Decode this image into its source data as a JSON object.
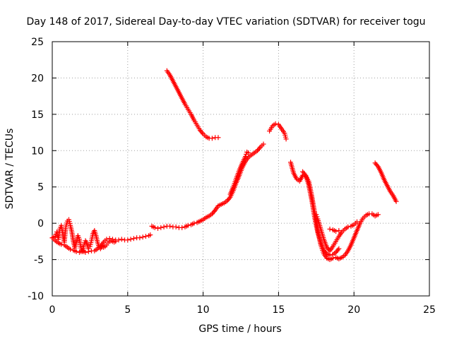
{
  "chart_data": {
    "type": "scatter",
    "title": "Day 148 of 2017, Sidereal Day-to-day VTEC variation (SDTVAR) for receiver togu",
    "xlabel": "GPS time / hours",
    "ylabel": "SDTVAR / TECUs",
    "xlim": [
      0,
      25
    ],
    "ylim": [
      -10,
      25
    ],
    "xticks": [
      "0",
      "5",
      "10",
      "15",
      "20",
      "25"
    ],
    "yticks": [
      "-10",
      "-5",
      "0",
      "5",
      "10",
      "15",
      "20",
      "25"
    ],
    "grid": true,
    "marker": "plus",
    "color": "#ff0000",
    "series": [
      {
        "name": "segment-1",
        "points": [
          [
            0,
            -2
          ],
          [
            0.2,
            -1.8
          ],
          [
            0.3,
            -1.2
          ],
          [
            0.4,
            -2.2
          ],
          [
            0.5,
            -0.8
          ],
          [
            0.6,
            -0.3
          ],
          [
            0.7,
            -1.5
          ],
          [
            0.8,
            -2.6
          ],
          [
            0.9,
            -0.5
          ],
          [
            1.0,
            0.3
          ],
          [
            1.1,
            0.5
          ],
          [
            1.2,
            -0.3
          ],
          [
            1.3,
            -1.2
          ],
          [
            1.4,
            -2.5
          ],
          [
            1.5,
            -3.4
          ],
          [
            1.6,
            -2.6
          ],
          [
            1.7,
            -1.7
          ],
          [
            1.8,
            -2.2
          ],
          [
            1.9,
            -3.4
          ],
          [
            2.0,
            -3.9
          ],
          [
            2.1,
            -3.0
          ],
          [
            2.2,
            -2.4
          ],
          [
            2.3,
            -2.8
          ],
          [
            2.4,
            -3.5
          ],
          [
            2.5,
            -3.2
          ],
          [
            2.6,
            -2.4
          ],
          [
            2.7,
            -1.4
          ],
          [
            2.8,
            -1.0
          ],
          [
            2.9,
            -1.7
          ],
          [
            3.0,
            -2.6
          ],
          [
            3.1,
            -3.3
          ],
          [
            3.2,
            -3.5
          ],
          [
            3.3,
            -3.1
          ]
        ]
      },
      {
        "name": "segment-2",
        "points": [
          [
            0,
            -2.0
          ],
          [
            0.2,
            -2.4
          ],
          [
            0.4,
            -2.7
          ],
          [
            0.6,
            -2.9
          ],
          [
            0.8,
            -3.0
          ],
          [
            1.0,
            -3.3
          ],
          [
            1.2,
            -3.6
          ],
          [
            1.4,
            -3.7
          ],
          [
            1.6,
            -3.9
          ],
          [
            1.8,
            -4.0
          ],
          [
            2.0,
            -3.8
          ],
          [
            2.2,
            -4.0
          ],
          [
            2.4,
            -3.9
          ],
          [
            2.6,
            -3.8
          ],
          [
            2.8,
            -3.8
          ],
          [
            3.0,
            -3.5
          ],
          [
            3.2,
            -3.2
          ],
          [
            3.4,
            -2.6
          ],
          [
            3.6,
            -2.2
          ],
          [
            3.8,
            -2.1
          ],
          [
            4.0,
            -2.2
          ],
          [
            4.2,
            -2.3
          ],
          [
            4.4,
            -2.3
          ],
          [
            4.6,
            -2.2
          ],
          [
            4.8,
            -2.3
          ],
          [
            5.0,
            -2.3
          ],
          [
            5.2,
            -2.2
          ],
          [
            5.4,
            -2.1
          ],
          [
            5.6,
            -2.0
          ],
          [
            5.8,
            -2.0
          ],
          [
            6.0,
            -1.9
          ],
          [
            6.2,
            -1.8
          ],
          [
            6.4,
            -1.7
          ],
          [
            6.5,
            -1.6
          ]
        ]
      },
      {
        "name": "segment-3",
        "points": [
          [
            3.3,
            -3.1
          ],
          [
            3.4,
            -3.3
          ],
          [
            3.5,
            -3.2
          ],
          [
            3.6,
            -3.0
          ],
          [
            3.7,
            -2.7
          ],
          [
            3.8,
            -2.5
          ],
          [
            3.9,
            -2.4
          ],
          [
            4.0,
            -2.5
          ],
          [
            4.1,
            -2.6
          ],
          [
            4.2,
            -2.5
          ]
        ]
      },
      {
        "name": "segment-4",
        "points": [
          [
            6.6,
            -0.4
          ],
          [
            6.8,
            -0.6
          ],
          [
            7.0,
            -0.7
          ],
          [
            7.2,
            -0.6
          ],
          [
            7.4,
            -0.5
          ],
          [
            7.6,
            -0.4
          ],
          [
            7.8,
            -0.4
          ],
          [
            8.0,
            -0.5
          ],
          [
            8.2,
            -0.5
          ],
          [
            8.4,
            -0.6
          ],
          [
            8.6,
            -0.6
          ],
          [
            8.8,
            -0.5
          ],
          [
            9.0,
            -0.3
          ],
          [
            9.2,
            -0.2
          ],
          [
            9.4,
            0.0
          ],
          [
            9.6,
            0.1
          ],
          [
            9.8,
            0.3
          ],
          [
            10.0,
            0.5
          ],
          [
            10.2,
            0.8
          ],
          [
            10.4,
            1.0
          ],
          [
            10.6,
            1.3
          ],
          [
            10.8,
            1.8
          ],
          [
            11.0,
            2.4
          ],
          [
            11.2,
            2.6
          ],
          [
            11.4,
            2.8
          ],
          [
            11.6,
            3.1
          ],
          [
            11.8,
            3.6
          ],
          [
            12.0,
            4.5
          ],
          [
            12.2,
            5.6
          ],
          [
            12.4,
            6.6
          ],
          [
            12.6,
            7.7
          ],
          [
            12.8,
            8.5
          ],
          [
            13.0,
            9.1
          ],
          [
            13.2,
            9.4
          ],
          [
            13.4,
            9.7
          ],
          [
            13.6,
            10.0
          ],
          [
            13.8,
            10.5
          ],
          [
            14.0,
            10.9
          ]
        ]
      },
      {
        "name": "segment-5",
        "points": [
          [
            11.8,
            4.0
          ],
          [
            12.0,
            5.0
          ],
          [
            12.2,
            6.2
          ],
          [
            12.4,
            7.3
          ],
          [
            12.6,
            8.3
          ],
          [
            12.8,
            9.2
          ],
          [
            12.9,
            9.8
          ],
          [
            13.0,
            9.7
          ]
        ]
      },
      {
        "name": "segment-6",
        "points": [
          [
            7.6,
            21.0
          ],
          [
            7.8,
            20.4
          ],
          [
            8.0,
            19.6
          ],
          [
            8.2,
            18.8
          ],
          [
            8.4,
            18.0
          ],
          [
            8.6,
            17.2
          ],
          [
            8.8,
            16.4
          ],
          [
            9.0,
            15.7
          ],
          [
            9.2,
            15.0
          ],
          [
            9.4,
            14.2
          ],
          [
            9.6,
            13.5
          ],
          [
            9.8,
            12.8
          ],
          [
            10.0,
            12.3
          ],
          [
            10.2,
            11.9
          ],
          [
            10.4,
            11.7
          ],
          [
            10.6,
            11.7
          ],
          [
            10.8,
            11.8
          ],
          [
            11.0,
            11.8
          ]
        ]
      },
      {
        "name": "segment-7",
        "points": [
          [
            14.4,
            12.7
          ],
          [
            14.6,
            13.4
          ],
          [
            14.8,
            13.7
          ],
          [
            15.0,
            13.6
          ],
          [
            15.2,
            13.0
          ],
          [
            15.4,
            12.4
          ],
          [
            15.5,
            11.6
          ]
        ]
      },
      {
        "name": "segment-8",
        "points": [
          [
            15.8,
            8.4
          ],
          [
            16.0,
            6.9
          ],
          [
            16.2,
            6.1
          ],
          [
            16.4,
            5.8
          ],
          [
            16.6,
            6.6
          ],
          [
            16.8,
            6.5
          ],
          [
            17.0,
            5.8
          ],
          [
            17.2,
            3.8
          ],
          [
            17.4,
            1.4
          ],
          [
            17.6,
            -1.0
          ],
          [
            17.8,
            -3.0
          ],
          [
            18.0,
            -4.2
          ],
          [
            18.2,
            -4.8
          ],
          [
            18.4,
            -5.0
          ],
          [
            18.6,
            -4.8
          ],
          [
            18.8,
            -4.7
          ],
          [
            19.0,
            -4.9
          ],
          [
            19.2,
            -4.7
          ],
          [
            19.4,
            -4.4
          ],
          [
            19.6,
            -3.8
          ],
          [
            19.8,
            -3.0
          ],
          [
            20.0,
            -2.0
          ],
          [
            20.2,
            -1.0
          ],
          [
            20.4,
            0.0
          ],
          [
            20.6,
            0.7
          ],
          [
            20.8,
            1.1
          ],
          [
            21.0,
            1.3
          ],
          [
            21.2,
            1.3
          ],
          [
            21.4,
            1.0
          ],
          [
            21.6,
            1.2
          ]
        ]
      },
      {
        "name": "segment-9",
        "points": [
          [
            16.6,
            7.1
          ],
          [
            16.8,
            6.6
          ],
          [
            17.0,
            5.3
          ],
          [
            17.2,
            3.2
          ],
          [
            17.4,
            0.7
          ],
          [
            17.6,
            -1.3
          ],
          [
            17.8,
            -2.6
          ],
          [
            18.0,
            -3.7
          ],
          [
            18.2,
            -4.2
          ],
          [
            18.4,
            -4.4
          ],
          [
            18.6,
            -4.3
          ],
          [
            18.8,
            -4.0
          ],
          [
            19.0,
            -3.5
          ]
        ]
      },
      {
        "name": "segment-10",
        "points": [
          [
            17.5,
            1.2
          ],
          [
            17.6,
            0.6
          ],
          [
            17.8,
            -0.8
          ],
          [
            18.0,
            -2.2
          ],
          [
            18.2,
            -3.3
          ],
          [
            18.4,
            -3.8
          ],
          [
            18.6,
            -3.2
          ],
          [
            18.8,
            -2.5
          ],
          [
            19.0,
            -1.8
          ],
          [
            19.2,
            -1.2
          ],
          [
            19.4,
            -0.8
          ],
          [
            19.6,
            -0.5
          ],
          [
            19.8,
            -0.4
          ],
          [
            20.0,
            -0.2
          ],
          [
            20.2,
            0.2
          ]
        ]
      },
      {
        "name": "segment-11",
        "points": [
          [
            21.4,
            8.3
          ],
          [
            21.6,
            7.8
          ],
          [
            21.8,
            7.0
          ],
          [
            22.0,
            6.0
          ],
          [
            22.2,
            5.2
          ],
          [
            22.4,
            4.4
          ],
          [
            22.6,
            3.8
          ],
          [
            22.8,
            3.0
          ]
        ]
      },
      {
        "name": "segment-12",
        "points": [
          [
            18.4,
            -0.8
          ],
          [
            18.6,
            -0.9
          ],
          [
            18.8,
            -1.1
          ],
          [
            19.0,
            -1.0
          ]
        ]
      }
    ]
  }
}
